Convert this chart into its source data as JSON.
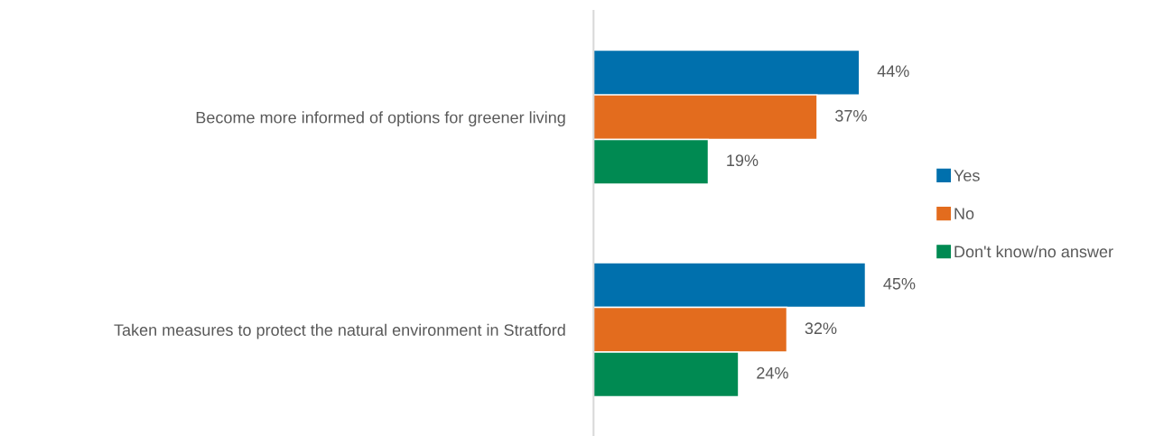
{
  "chart_data": {
    "type": "bar",
    "orientation": "horizontal",
    "categories": [
      "Become more informed of options for greener living",
      "Taken measures to protect the natural environment in Stratford"
    ],
    "series": [
      {
        "name": "Yes",
        "color": "#0070ad",
        "values": [
          44,
          45
        ],
        "value_labels": [
          "44%",
          "45%"
        ]
      },
      {
        "name": "No",
        "color": "#e36c1e",
        "values": [
          37,
          32
        ],
        "value_labels": [
          "37%",
          "32%"
        ]
      },
      {
        "name": "Don't know/no answer",
        "color": "#008a52",
        "values": [
          19,
          24
        ],
        "value_labels": [
          "19%",
          "24%"
        ]
      }
    ],
    "legend": "right",
    "grid": false,
    "tick_labels": "y"
  }
}
